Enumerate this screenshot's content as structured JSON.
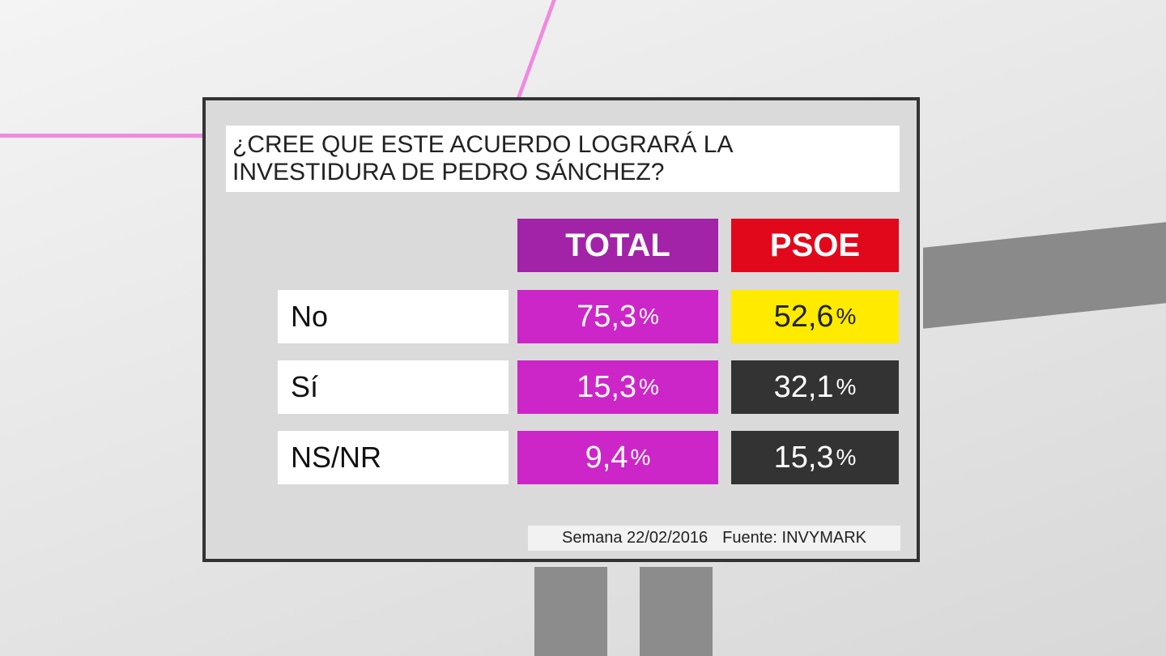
{
  "title": "¿CREE QUE ESTE ACUERDO LOGRARÁ LA INVESTIDURA DE PEDRO SÁNCHEZ?",
  "table": {
    "columns": [
      "TOTAL",
      "PSOE"
    ],
    "rows": [
      {
        "label": "No",
        "cells": [
          {
            "value": "75,3",
            "unit": "%"
          },
          {
            "value": "52,6",
            "unit": "%"
          }
        ]
      },
      {
        "label": "Sí",
        "cells": [
          {
            "value": "15,3",
            "unit": "%"
          },
          {
            "value": "32,1",
            "unit": "%"
          }
        ]
      },
      {
        "label": "NS/NR",
        "cells": [
          {
            "value": "9,4",
            "unit": "%"
          },
          {
            "value": "15,3",
            "unit": "%"
          }
        ]
      }
    ]
  },
  "footer": {
    "date": "Semana 22/02/2016",
    "source": "Fuente: INVYMARK"
  }
}
